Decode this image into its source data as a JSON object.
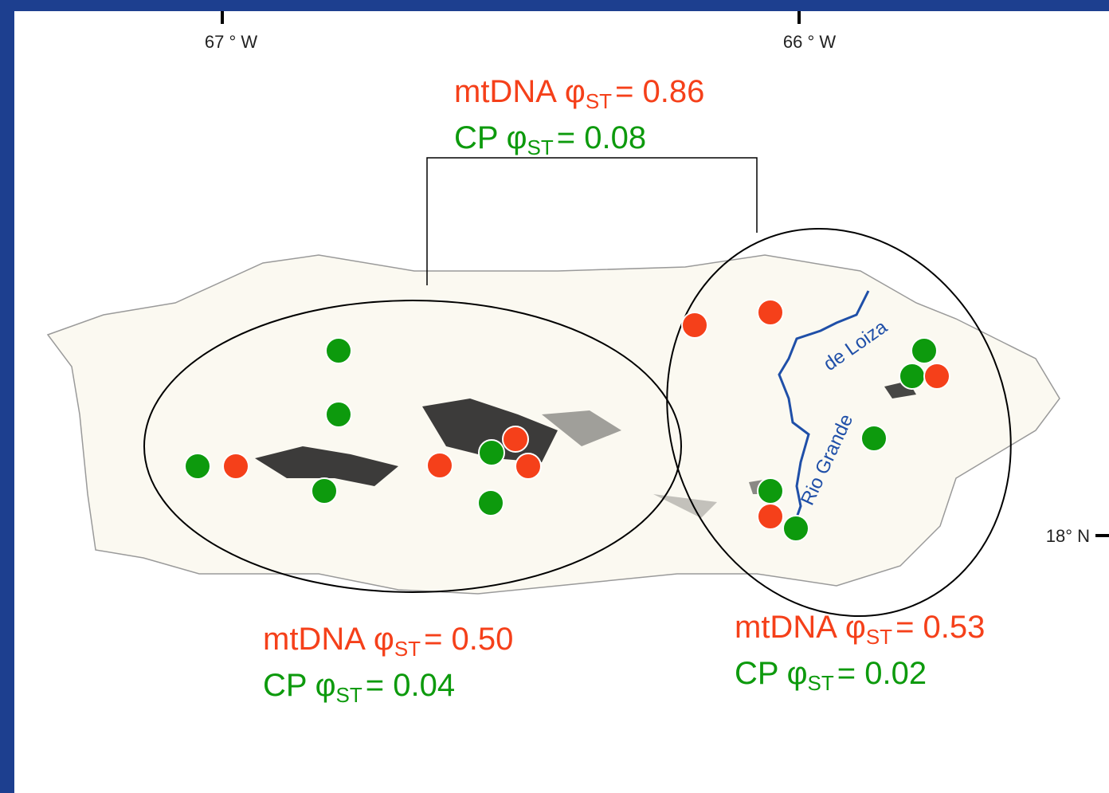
{
  "map": {
    "axis_labels": {
      "lon_67": "67 ° W",
      "lon_66": "66 ° W",
      "lat_18": "18° N"
    },
    "river_labels": [
      "de Loiza",
      "Rio Grande"
    ],
    "stats": [
      {
        "mtdna": {
          "label": "mtDNA",
          "symbol": "φ",
          "subscript": "ST",
          "value": "= 0.86"
        },
        "cp": {
          "label": "CP",
          "symbol": "φ",
          "subscript": "ST",
          "value": "= 0.08"
        }
      },
      {
        "mtdna": {
          "label": "mtDNA",
          "symbol": "φ",
          "subscript": "ST",
          "value": "= 0.50"
        },
        "cp": {
          "label": "CP",
          "symbol": "φ",
          "subscript": "ST",
          "value": "= 0.04"
        }
      },
      {
        "mtdna": {
          "label": "mtDNA",
          "symbol": "φ",
          "subscript": "ST",
          "value": "= 0.53"
        },
        "cp": {
          "label": "CP",
          "symbol": "φ",
          "subscript": "ST",
          "value": "= 0.02"
        }
      }
    ]
  }
}
